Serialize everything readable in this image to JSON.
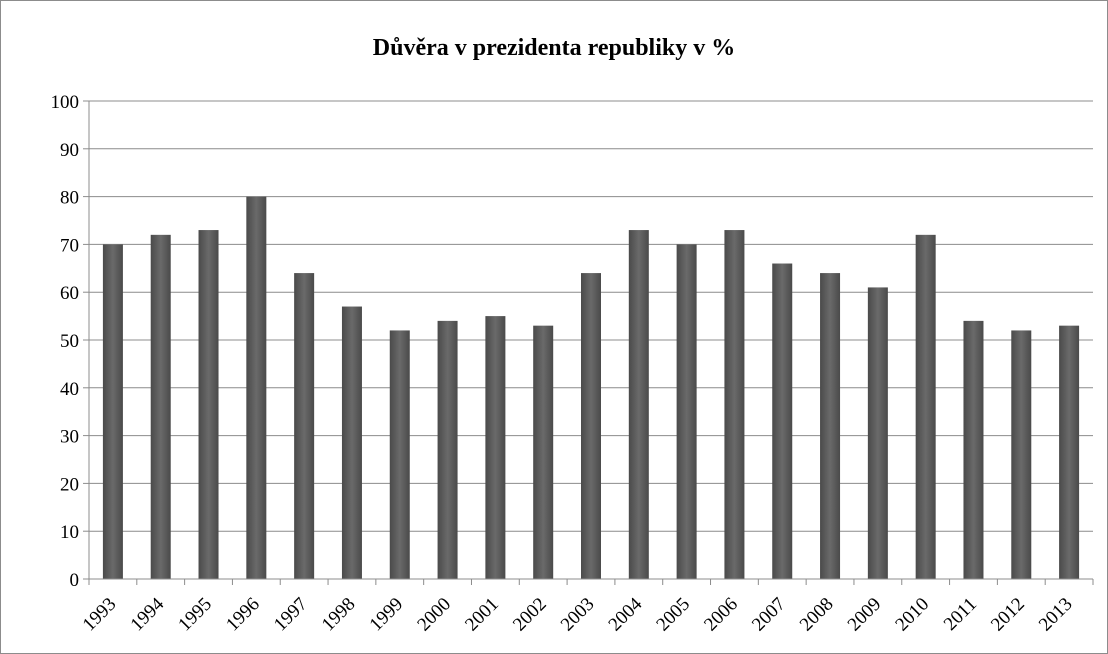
{
  "chart_data": {
    "type": "bar",
    "title": "Důvěra v prezidenta republiky v %",
    "xlabel": "",
    "ylabel": "",
    "categories": [
      "1993",
      "1994",
      "1995",
      "1996",
      "1997",
      "1998",
      "1999",
      "2000",
      "2001",
      "2002",
      "2003",
      "2004",
      "2005",
      "2006",
      "2007",
      "2008",
      "2009",
      "2010",
      "2011",
      "2012",
      "2013"
    ],
    "values": [
      70,
      72,
      73,
      80,
      64,
      57,
      52,
      54,
      55,
      53,
      64,
      73,
      70,
      73,
      66,
      64,
      61,
      72,
      54,
      52,
      53
    ],
    "ylim": [
      0,
      100
    ],
    "yticks": [
      0,
      10,
      20,
      30,
      40,
      50,
      60,
      70,
      80,
      90,
      100
    ],
    "grid": true,
    "legend": "none",
    "bar_color": "#5a5a5a",
    "grid_color": "#8c8c8c"
  }
}
